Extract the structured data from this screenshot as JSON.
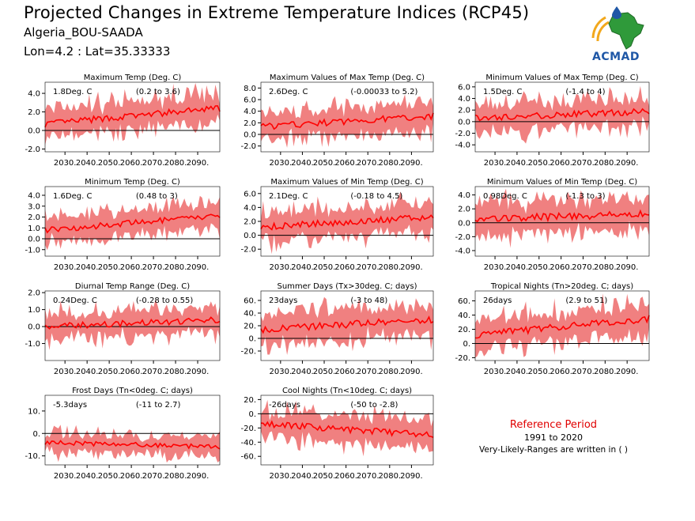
{
  "header": {
    "title": "Projected Changes in Extreme Temperature Indices (RCP45)",
    "station": "Algeria_BOU-SAADA",
    "coords": "Lon=4.2 : Lat=35.33333"
  },
  "logo": {
    "text": "ACMAD",
    "icon": "africa-map-logo-icon"
  },
  "reference": {
    "title": "Reference Period",
    "years": "1991 to 2020",
    "note": "Very-Likely-Ranges are written in ( )"
  },
  "colors": {
    "band": "#f08080",
    "line": "#ff0000",
    "zero": "#000000"
  },
  "chart_data": [
    {
      "type": "line",
      "title": "Maximum Temp (Deg. C)",
      "stat": "1.8Deg. C",
      "range": "(0.2 to 3.6)",
      "x_ticks": [
        "2030.",
        "2040.",
        "2050.",
        "2060.",
        "2070.",
        "2080.",
        "2090."
      ],
      "y_ticks": [
        -2.0,
        0.0,
        2.0,
        4.0
      ],
      "ylim": [
        -2.3,
        5.2
      ],
      "x": [
        2021,
        2100
      ],
      "mean_start": 0.7,
      "mean_end": 2.4,
      "band_halfwidth": 1.6,
      "series": [
        {
          "values": "mean"
        },
        {
          "values": "very-likely range band"
        }
      ]
    },
    {
      "type": "line",
      "title": "Maximum Values of Max Temp (Deg. C)",
      "stat": "2.6Deg. C",
      "range": "(-0.00033 to 5.2)",
      "x_ticks": [
        "2030.",
        "2040.",
        "2050.",
        "2060.",
        "2070.",
        "2080.",
        "2090."
      ],
      "y_ticks": [
        -2.0,
        0.0,
        2.0,
        4.0,
        6.0,
        8.0
      ],
      "ylim": [
        -3.0,
        9.0
      ],
      "x": [
        2021,
        2100
      ],
      "mean_start": 1.3,
      "mean_end": 3.2,
      "band_halfwidth": 2.5
    },
    {
      "type": "line",
      "title": "Minimum Values of Max Temp (Deg. C)",
      "stat": "1.5Deg. C",
      "range": "(-1.4 to 4)",
      "x_ticks": [
        "2030.",
        "2040.",
        "2050.",
        "2060.",
        "2070.",
        "2080.",
        "2090."
      ],
      "y_ticks": [
        -4.0,
        -2.0,
        0.0,
        2.0,
        4.0,
        6.0
      ],
      "ylim": [
        -5.2,
        6.8
      ],
      "x": [
        2021,
        2100
      ],
      "mean_start": 0.6,
      "mean_end": 1.8,
      "band_halfwidth": 2.5
    },
    {
      "type": "line",
      "title": "Minimum Temp (Deg. C)",
      "stat": "1.6Deg. C",
      "range": "(0.48 to 3)",
      "x_ticks": [
        "2030.",
        "2040.",
        "2050.",
        "2060.",
        "2070.",
        "2080.",
        "2090."
      ],
      "y_ticks": [
        -1.0,
        0.0,
        1.0,
        2.0,
        3.0,
        4.0
      ],
      "ylim": [
        -1.6,
        4.8
      ],
      "x": [
        2021,
        2100
      ],
      "mean_start": 0.8,
      "mean_end": 2.1,
      "band_halfwidth": 1.2
    },
    {
      "type": "line",
      "title": "Maximum Values of Min Temp (Deg. C)",
      "stat": "2.1Deg. C",
      "range": "(-0.18 to 4.5)",
      "x_ticks": [
        "2030.",
        "2040.",
        "2050.",
        "2060.",
        "2070.",
        "2080.",
        "2090."
      ],
      "y_ticks": [
        -2.0,
        0.0,
        2.0,
        4.0,
        6.0
      ],
      "ylim": [
        -3.0,
        7.0
      ],
      "x": [
        2021,
        2100
      ],
      "mean_start": 1.2,
      "mean_end": 2.6,
      "band_halfwidth": 2.1
    },
    {
      "type": "line",
      "title": "Minimum Values of Min Temp (Deg. C)",
      "stat": "0.98Deg. C",
      "range": "(-1.3 to 3)",
      "x_ticks": [
        "2030.",
        "2040.",
        "2050.",
        "2060.",
        "2070.",
        "2080.",
        "2090."
      ],
      "y_ticks": [
        -4.0,
        -2.0,
        0.0,
        2.0,
        4.0
      ],
      "ylim": [
        -4.8,
        5.2
      ],
      "x": [
        2021,
        2100
      ],
      "mean_start": 0.5,
      "mean_end": 1.3,
      "band_halfwidth": 2.3
    },
    {
      "type": "line",
      "title": "Diurnal Temp Range (Deg. C)",
      "stat": "0.24Deg. C",
      "range": "(-0.28 to 0.55)",
      "x_ticks": [
        "2030.",
        "2040.",
        "2050.",
        "2060.",
        "2070.",
        "2080.",
        "2090."
      ],
      "y_ticks": [
        -1.0,
        0.0,
        1.0,
        2.0
      ],
      "ylim": [
        -2.0,
        2.1
      ],
      "x": [
        2021,
        2100
      ],
      "mean_start": 0.0,
      "mean_end": 0.4,
      "band_halfwidth": 0.8
    },
    {
      "type": "line",
      "title": "Summer Days (Tx>30deg. C; days)",
      "stat": "23days",
      "range": "(-3 to 48)",
      "x_ticks": [
        "2030.",
        "2040.",
        "2050.",
        "2060.",
        "2070.",
        "2080.",
        "2090."
      ],
      "y_ticks": [
        -20,
        0,
        20,
        40,
        60
      ],
      "ylim": [
        -35,
        75
      ],
      "x": [
        2021,
        2100
      ],
      "mean_start": 14,
      "mean_end": 30,
      "band_halfwidth": 24
    },
    {
      "type": "line",
      "title": "Tropical Nights (Tn>20deg. C; days)",
      "stat": "26days",
      "range": "(2.9 to 51)",
      "x_ticks": [
        "2030.",
        "2040.",
        "2050.",
        "2060.",
        "2070.",
        "2080.",
        "2090."
      ],
      "y_ticks": [
        -20,
        0,
        20,
        40,
        60
      ],
      "ylim": [
        -24,
        74
      ],
      "x": [
        2021,
        2100
      ],
      "mean_start": 12,
      "mean_end": 35,
      "band_halfwidth": 22
    },
    {
      "type": "line",
      "title": "Frost Days (Tn<0deg. C; days)",
      "stat": "-5.3days",
      "range": "(-11 to 2.7)",
      "x_ticks": [
        "2030.",
        "2040.",
        "2050.",
        "2060.",
        "2070.",
        "2080.",
        "2090."
      ],
      "y_ticks": [
        -10,
        0,
        10
      ],
      "ylim": [
        -14,
        17
      ],
      "x": [
        2021,
        2100
      ],
      "mean_start": -4,
      "mean_end": -6,
      "band_halfwidth": 4.5
    },
    {
      "type": "line",
      "title": "Cool Nights (Tn<10deg. C; days)",
      "stat": "-26days",
      "range": "(-50 to -2.8)",
      "x_ticks": [
        "2030.",
        "2040.",
        "2050.",
        "2060.",
        "2070.",
        "2080.",
        "2090."
      ],
      "y_ticks": [
        -60,
        -40,
        -20,
        0,
        20
      ],
      "ylim": [
        -72,
        26
      ],
      "x": [
        2021,
        2100
      ],
      "mean_start": -14,
      "mean_end": -30,
      "band_halfwidth": 20
    }
  ]
}
